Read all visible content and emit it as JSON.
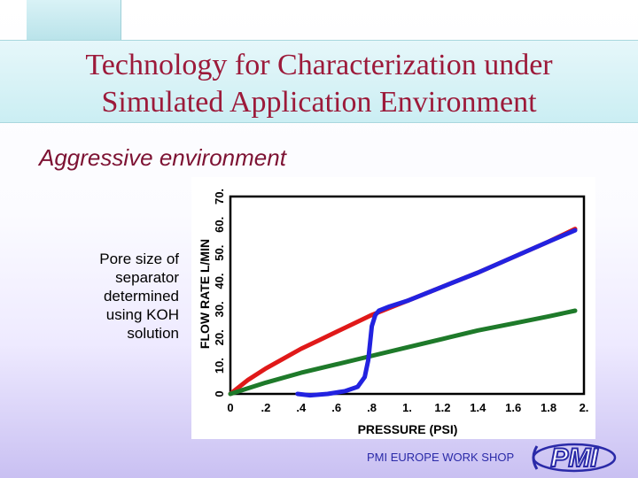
{
  "slide": {
    "title_line1": "Technology for Characterization under",
    "title_line2": "Simulated Application Environment",
    "subtitle": "Aggressive environment",
    "side_text": [
      "Pore size of",
      "separator",
      "determined",
      "using KOH",
      "solution"
    ],
    "footer": "PMI EUROPE WORK SHOP",
    "logo_text": "PMI",
    "colors": {
      "title": "#9c1a3a",
      "subtitle": "#7d1233",
      "footer": "#2a2aa8"
    }
  },
  "chart_data": {
    "type": "line",
    "title": "",
    "xlabel": "PRESSURE (PSI)",
    "ylabel": "FLOW RATE L/MIN",
    "xlim": [
      0,
      2.0
    ],
    "ylim": [
      0,
      70
    ],
    "x_ticks": [
      "0",
      ".2",
      ".4",
      ".6",
      ".8",
      "1.",
      "1.2",
      "1.4",
      "1.6",
      "1.8",
      "2."
    ],
    "y_ticks": [
      "0",
      "10.",
      "20.",
      "30.",
      "40.",
      "50.",
      "60.",
      "70."
    ],
    "grid": false,
    "series": [
      {
        "color": "#e01919",
        "x": [
          0,
          0.1,
          0.2,
          0.3,
          0.4,
          0.5,
          0.6,
          0.7,
          0.8,
          0.9,
          1.0,
          1.2,
          1.4,
          1.6,
          1.8,
          1.95
        ],
        "y": [
          0,
          5,
          9,
          12.5,
          16,
          19,
          22,
          25,
          28,
          30.5,
          33,
          38,
          43,
          48.5,
          54,
          58.5
        ]
      },
      {
        "color": "#1e7a2a",
        "x": [
          0,
          0.2,
          0.4,
          0.6,
          0.8,
          1.0,
          1.2,
          1.4,
          1.6,
          1.8,
          1.95
        ],
        "y": [
          0,
          4,
          7.5,
          10.5,
          13.5,
          16.5,
          19.5,
          22.5,
          25,
          27.5,
          29.5
        ]
      },
      {
        "color": "#2222e0",
        "x": [
          0.38,
          0.45,
          0.55,
          0.65,
          0.72,
          0.76,
          0.78,
          0.79,
          0.8,
          0.82,
          0.84,
          0.9,
          1.0,
          1.2,
          1.4,
          1.6,
          1.8,
          1.95
        ],
        "y": [
          0,
          -0.5,
          0,
          1,
          2.5,
          6,
          12,
          18,
          24,
          28,
          29.5,
          31,
          33,
          38,
          43,
          48.5,
          54,
          58
        ]
      }
    ]
  }
}
